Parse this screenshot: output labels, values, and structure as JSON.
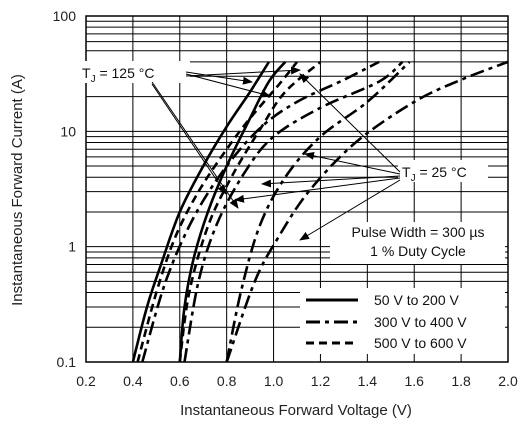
{
  "chart_data": {
    "type": "line",
    "title": "",
    "xlabel": "Instantaneous Forward Voltage (V)",
    "ylabel": "Instantaneous Forward Current (A)",
    "x_scale": "linear",
    "y_scale": "log",
    "xlim": [
      0.2,
      2.0
    ],
    "ylim": [
      0.1,
      100
    ],
    "x_ticks": [
      "0.2",
      "0.4",
      "0.6",
      "0.8",
      "1.0",
      "1.2",
      "1.4",
      "1.6",
      "1.8",
      "2.0"
    ],
    "y_ticks": [
      "0.1",
      "1",
      "10",
      "100"
    ],
    "grid": true,
    "legend_position": "bottom-right",
    "legend": [
      {
        "name": "50 V to 200 V",
        "style": "solid"
      },
      {
        "name": "300 V to 400 V",
        "style": "dash-dot"
      },
      {
        "name": "500 V to 600 V",
        "style": "dashed"
      }
    ],
    "annotations": [
      {
        "text_main": "T",
        "text_sub": "J",
        "text_rest": " = 125 °C"
      },
      {
        "text_main": "T",
        "text_sub": "J",
        "text_rest": " = 25 °C"
      },
      {
        "text": "Pulse Width = 300 µs"
      },
      {
        "text": "1 % Duty Cycle"
      }
    ],
    "series": [
      {
        "style": "solid",
        "temperature": "125 °C",
        "points": [
          [
            0.4,
            0.1
          ],
          [
            0.46,
            0.3
          ],
          [
            0.52,
            0.7
          ],
          [
            0.6,
            2
          ],
          [
            0.7,
            5
          ],
          [
            0.8,
            11
          ],
          [
            0.9,
            22
          ],
          [
            0.98,
            40
          ]
        ]
      },
      {
        "style": "solid",
        "temperature": "25 °C",
        "points": [
          [
            0.6,
            0.1
          ],
          [
            0.62,
            0.3
          ],
          [
            0.66,
            0.8
          ],
          [
            0.72,
            2
          ],
          [
            0.8,
            5
          ],
          [
            0.9,
            13
          ],
          [
            0.98,
            27
          ],
          [
            1.05,
            40
          ]
        ]
      },
      {
        "style": "dashed",
        "temperature": "125 °C",
        "points": [
          [
            0.42,
            0.1
          ],
          [
            0.5,
            0.4
          ],
          [
            0.58,
            1.2
          ],
          [
            0.68,
            3
          ],
          [
            0.8,
            7
          ],
          [
            0.9,
            13
          ],
          [
            1.02,
            25
          ],
          [
            1.1,
            40
          ]
        ]
      },
      {
        "style": "dashed",
        "temperature": "25 °C",
        "points": [
          [
            0.6,
            0.1
          ],
          [
            0.64,
            0.4
          ],
          [
            0.72,
            1.5
          ],
          [
            0.82,
            4
          ],
          [
            0.95,
            11
          ],
          [
            1.05,
            22
          ],
          [
            1.2,
            40
          ]
        ]
      },
      {
        "style": "dash-dot",
        "temperature": "125 °C",
        "points": [
          [
            0.44,
            0.1
          ],
          [
            0.54,
            0.5
          ],
          [
            0.66,
            1.8
          ],
          [
            0.8,
            5
          ],
          [
            0.95,
            11
          ],
          [
            1.1,
            18
          ],
          [
            1.3,
            28
          ],
          [
            1.45,
            40
          ]
        ]
      },
      {
        "style": "dash-dot",
        "temperature": "125 °C",
        "points": [
          [
            0.8,
            0.1
          ],
          [
            0.86,
            0.4
          ],
          [
            0.94,
            1.5
          ],
          [
            1.05,
            4
          ],
          [
            1.2,
            9
          ],
          [
            1.4,
            18
          ],
          [
            1.58,
            40
          ]
        ]
      },
      {
        "style": "dash-dot",
        "temperature": "25 °C",
        "points": [
          [
            0.62,
            0.1
          ],
          [
            0.68,
            0.5
          ],
          [
            0.76,
            1.6
          ],
          [
            0.88,
            4.5
          ],
          [
            1.0,
            9
          ],
          [
            1.2,
            16
          ],
          [
            1.45,
            27
          ],
          [
            1.55,
            40
          ]
        ]
      },
      {
        "style": "dash-dot",
        "temperature": "25 °C",
        "points": [
          [
            0.8,
            0.1
          ],
          [
            0.92,
            0.5
          ],
          [
            1.02,
            1.2
          ],
          [
            1.15,
            3
          ],
          [
            1.35,
            8
          ],
          [
            1.6,
            18
          ],
          [
            1.8,
            28
          ],
          [
            2.0,
            40
          ]
        ]
      }
    ]
  }
}
